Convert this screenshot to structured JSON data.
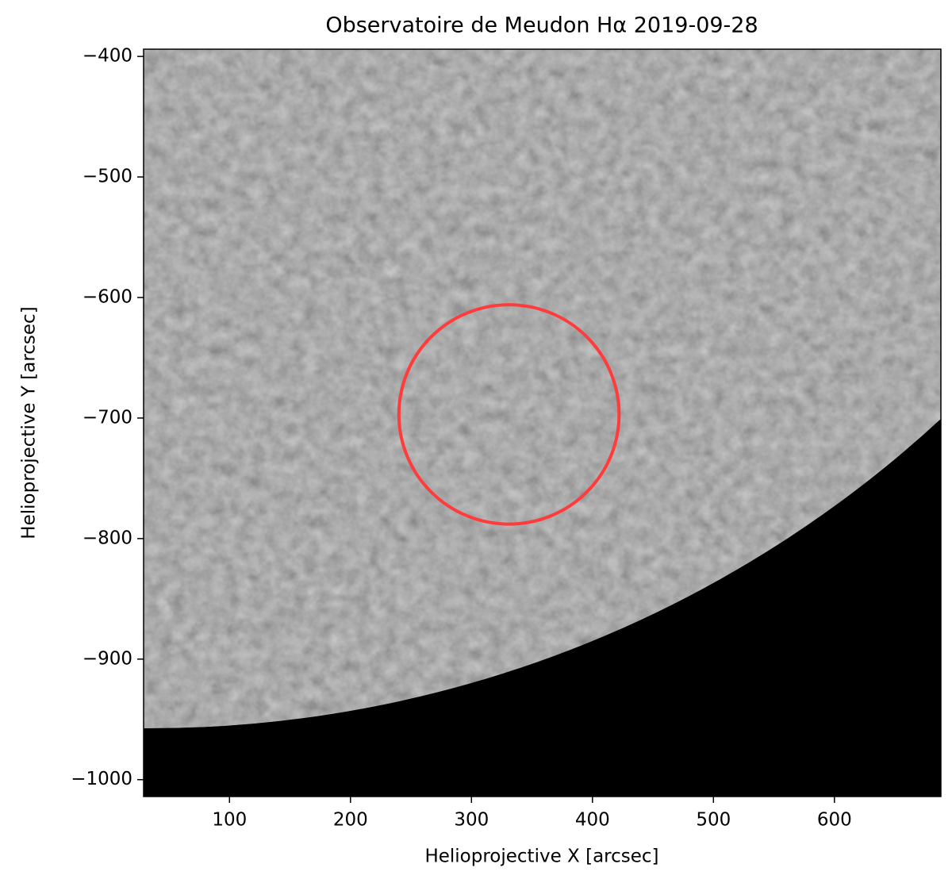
{
  "chart_data": {
    "type": "image",
    "title": "Observatoire de Meudon Hα 2019-09-28",
    "x_label": "Helioprojective X [arcsec]",
    "y_label": "Helioprojective Y [arcsec]",
    "xlim": [
      29,
      688
    ],
    "ylim": [
      -1014,
      -394
    ],
    "xticks": [
      100,
      200,
      300,
      400,
      500,
      600
    ],
    "yticks": [
      {
        "value": -400,
        "label": "−400"
      },
      {
        "value": -500,
        "label": "−500"
      },
      {
        "value": -600,
        "label": "−600"
      },
      {
        "value": -700,
        "label": "−700"
      },
      {
        "value": -800,
        "label": "−800"
      },
      {
        "value": -900,
        "label": "−900"
      },
      {
        "value": -1000,
        "label": "−1000"
      }
    ],
    "circle": {
      "center": [
        331,
        -697
      ],
      "radius": 91,
      "color": "#ff3b3b"
    }
  }
}
